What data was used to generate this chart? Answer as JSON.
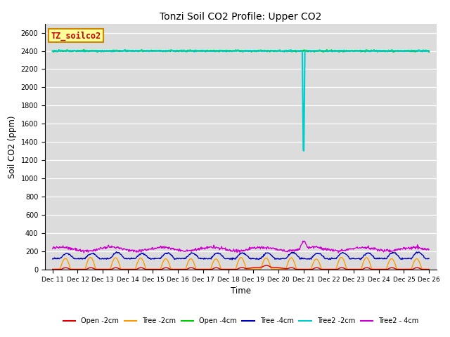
{
  "title": "Tonzi Soil CO2 Profile: Upper CO2",
  "xlabel": "Time",
  "ylabel": "Soil CO2 (ppm)",
  "ylim": [
    0,
    2700
  ],
  "yticks": [
    0,
    200,
    400,
    600,
    800,
    1000,
    1200,
    1400,
    1600,
    1800,
    2000,
    2200,
    2400,
    2600
  ],
  "background_color": "#dcdcdc",
  "legend_box_color": "#ffff99",
  "legend_box_edge": "#cc8800",
  "legend_text": "TZ_soilco2",
  "series": {
    "Open_2cm": {
      "color": "#dd0000",
      "lw": 1.0,
      "label": "Open -2cm"
    },
    "Tree_2cm": {
      "color": "#ff9900",
      "lw": 1.0,
      "label": "Tree -2cm"
    },
    "Open_4cm": {
      "color": "#00cc00",
      "lw": 1.5,
      "label": "Open -4cm"
    },
    "Tree_4cm": {
      "color": "#0000bb",
      "lw": 1.0,
      "label": "Tree -4cm"
    },
    "Tree2_2cm": {
      "color": "#00cccc",
      "lw": 1.5,
      "label": "Tree2 -2cm"
    },
    "Tree2_4cm": {
      "color": "#cc00cc",
      "lw": 1.0,
      "label": "Tree2 - 4cm"
    }
  },
  "x_tick_labels": [
    "Dec 11",
    "Dec 12",
    "Dec 13",
    "Dec 14",
    "Dec 15",
    "Dec 16",
    "Dec 17",
    "Dec 18",
    "Dec 19",
    "Dec 20",
    "Dec 21",
    "Dec 22",
    "Dec 23",
    "Dec 24",
    "Dec 25",
    "Dec 26"
  ]
}
